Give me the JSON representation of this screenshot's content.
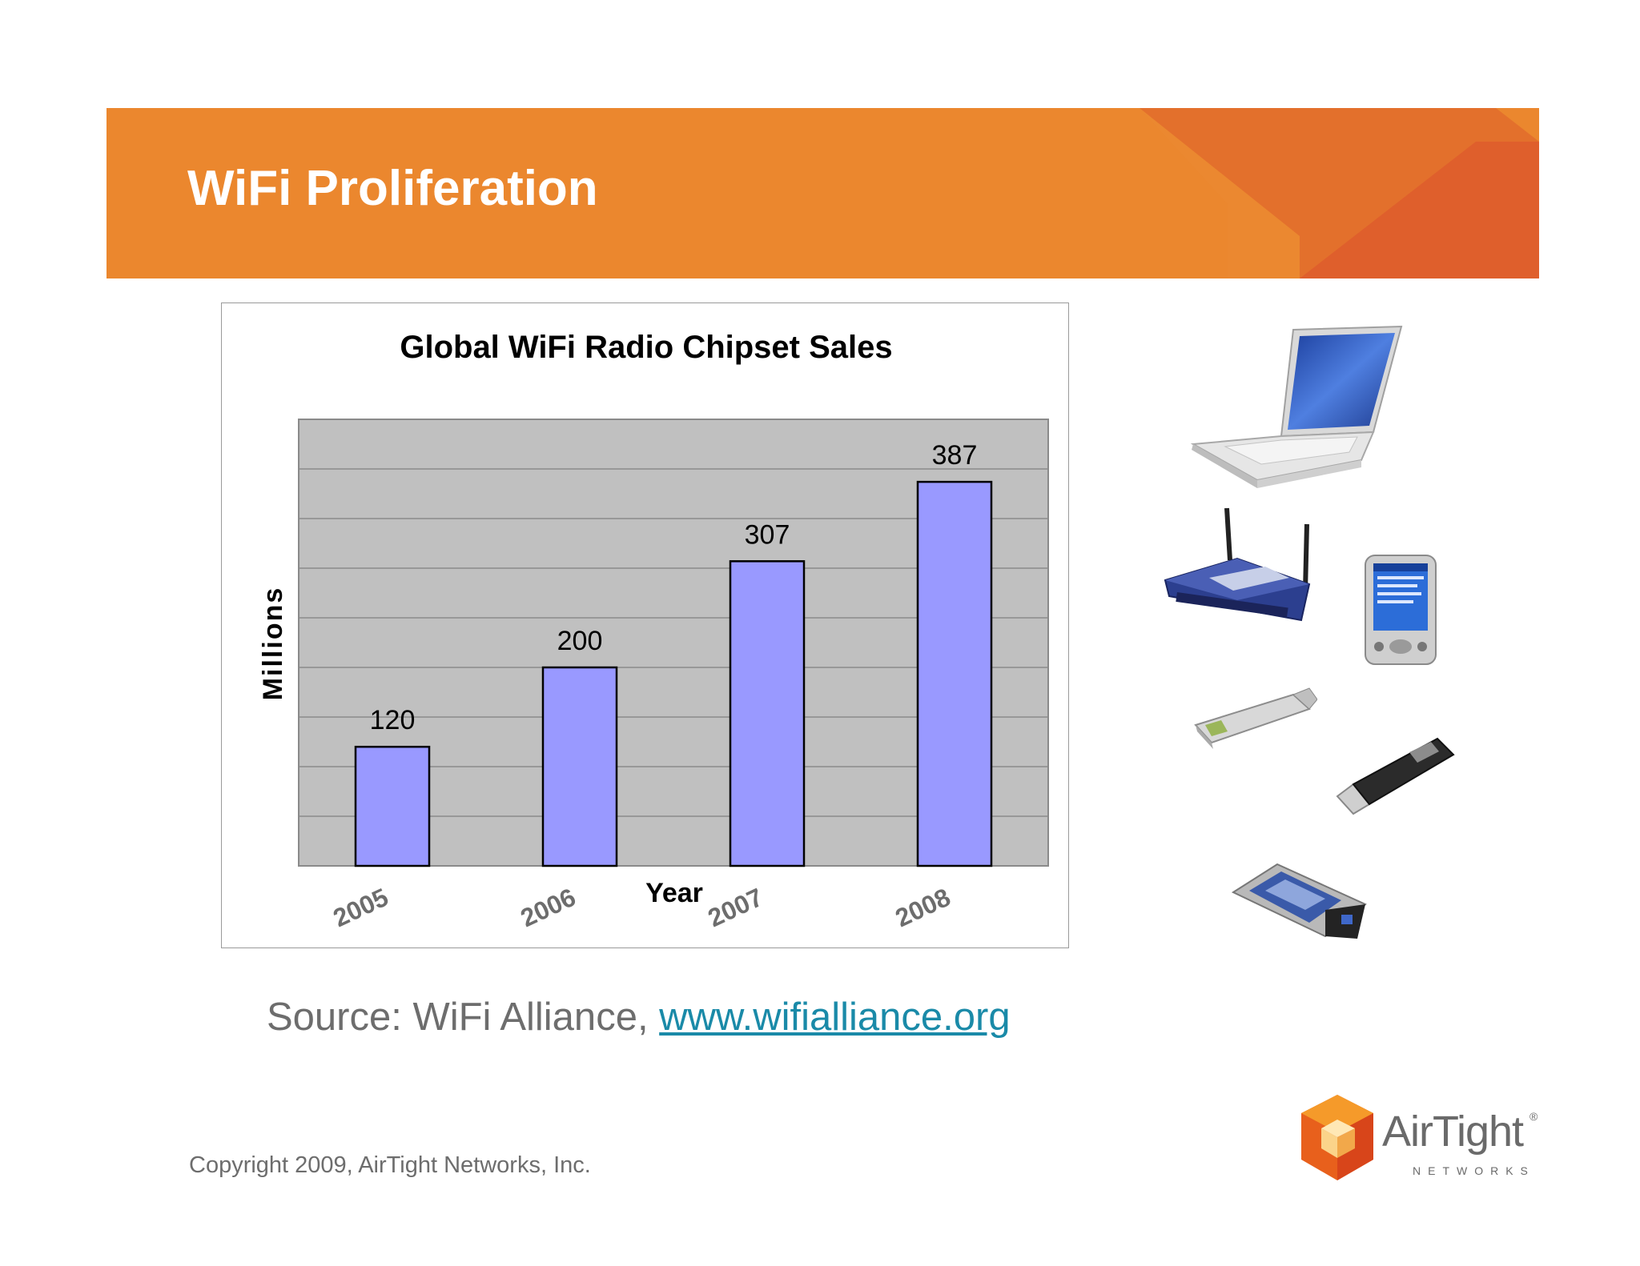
{
  "slide": {
    "title": "WiFi Proliferation",
    "source_prefix": "Source: WiFi Alliance, ",
    "source_link": "www.wifialliance.org",
    "copyright": "Copyright 2009, AirTight Networks, Inc."
  },
  "logo": {
    "brand": "AirTight",
    "sub": "NETWORKS",
    "registered": "®",
    "icon": "cube-logo-icon"
  },
  "devices": [
    "laptop-icon",
    "wireless-router-icon",
    "pda-icon",
    "usb-wifi-adapter-icon",
    "usb-flash-drive-icon",
    "pcmcia-wifi-card-icon"
  ],
  "colors": {
    "banner": "#eb872e",
    "banner_accent": "#e0612c",
    "bar_fill": "#9999ff",
    "plot_bg": "#c0c0c0",
    "link": "#1a8aa8"
  },
  "chart_data": {
    "type": "bar",
    "title": "Global WiFi Radio Chipset Sales",
    "xlabel": "Year",
    "ylabel": "Millions",
    "categories": [
      "2005",
      "2006",
      "2007",
      "2008"
    ],
    "values": [
      120,
      200,
      307,
      387
    ],
    "ylim": [
      0,
      450
    ],
    "grid": true,
    "data_labels": true
  }
}
